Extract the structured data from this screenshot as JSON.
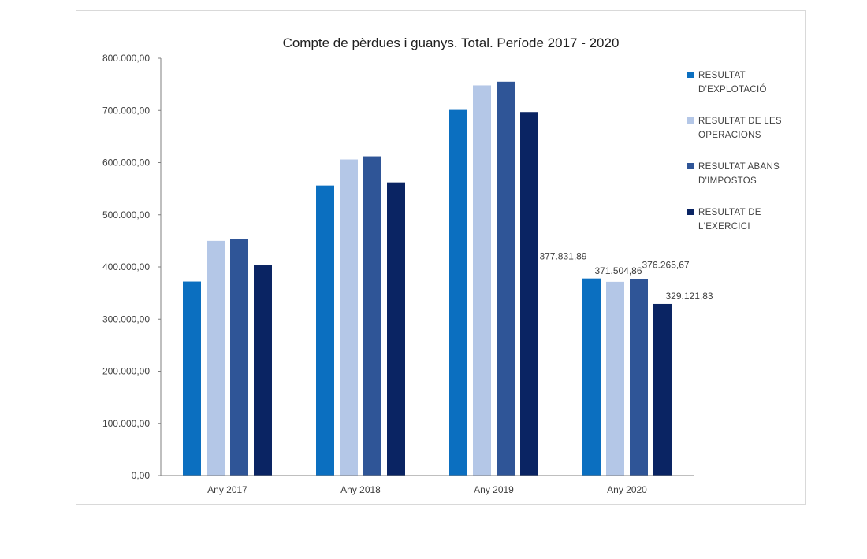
{
  "chart_data": {
    "type": "bar",
    "title": "Compte de pèrdues i guanys. Total. Període 2017 - 2020",
    "categories": [
      "Any 2017",
      "Any 2018",
      "Any 2019",
      "Any 2020"
    ],
    "ylim": [
      0,
      800000
    ],
    "yticks": [
      {
        "value": 0,
        "label": "0,00"
      },
      {
        "value": 100000,
        "label": "100.000,00"
      },
      {
        "value": 200000,
        "label": "200.000,00"
      },
      {
        "value": 300000,
        "label": "300.000,00"
      },
      {
        "value": 400000,
        "label": "400.000,00"
      },
      {
        "value": 500000,
        "label": "500.000,00"
      },
      {
        "value": 600000,
        "label": "600.000,00"
      },
      {
        "value": 700000,
        "label": "700.000,00"
      },
      {
        "value": 800000,
        "label": "800.000,00"
      }
    ],
    "grid": false,
    "legend_position": "right",
    "series": [
      {
        "name_lines": [
          "RESULTAT",
          "D'EXPLOTACIÓ"
        ],
        "color": "#0b6fc0",
        "values": [
          372000,
          556000,
          701000,
          377831.89
        ]
      },
      {
        "name_lines": [
          "RESULTAT DE LES",
          "OPERACIONS"
        ],
        "color": "#b4c7e7",
        "values": [
          450000,
          606000,
          748000,
          371504.86
        ]
      },
      {
        "name_lines": [
          "RESULTAT ABANS",
          "D'IMPOSTOS"
        ],
        "color": "#2f5597",
        "values": [
          453000,
          612000,
          755000,
          376265.67
        ]
      },
      {
        "name_lines": [
          "RESULTAT DE",
          "L'EXERCICI"
        ],
        "color": "#0a2463",
        "values": [
          403000,
          562000,
          697000,
          329121.83
        ]
      }
    ],
    "data_labels": {
      "category_index": 3,
      "labels": [
        "377.831,89",
        "371.504,86",
        "376.265,67",
        "329.121,83"
      ]
    }
  }
}
